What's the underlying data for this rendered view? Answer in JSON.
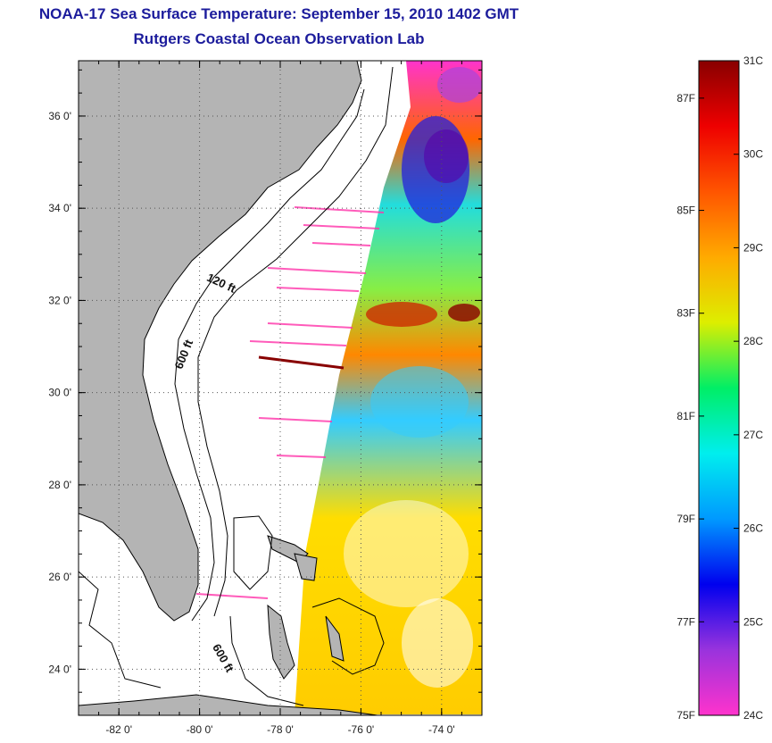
{
  "title_line1": "NOAA-17 Sea Surface Temperature:  September 15, 2010 1402 GMT",
  "title_line2": "Rutgers Coastal Ocean Observation Lab",
  "map": {
    "lon_range": [
      -83,
      -73
    ],
    "lat_range": [
      23,
      37.2
    ],
    "lat_ticks": [
      {
        "value": 24,
        "label": "24 0'"
      },
      {
        "value": 26,
        "label": "26 0'"
      },
      {
        "value": 28,
        "label": "28 0'"
      },
      {
        "value": 30,
        "label": "30 0'"
      },
      {
        "value": 32,
        "label": "32 0'"
      },
      {
        "value": 34,
        "label": "34 0'"
      },
      {
        "value": 36,
        "label": "36 0'"
      }
    ],
    "lon_ticks": [
      {
        "value": -82,
        "label": "-82 0'"
      },
      {
        "value": -80,
        "label": "-80 0'"
      },
      {
        "value": -78,
        "label": "-78 0'"
      },
      {
        "value": -76,
        "label": "-76 0'"
      },
      {
        "value": -74,
        "label": "-74 0'"
      }
    ],
    "contour_labels": [
      {
        "text": "120 ft",
        "lon": -79.5,
        "lat": 32.3
      },
      {
        "text": "600 ft",
        "lon": -80.3,
        "lat": 30.8
      },
      {
        "text": "600 ft",
        "lon": -79.5,
        "lat": 24.2
      }
    ],
    "colors": {
      "land": "#b4b4b4",
      "ocean_nodata": "#ffffff",
      "coast": "#000000"
    }
  },
  "colorbar": {
    "range_c": [
      24,
      31
    ],
    "celsius_labels": [
      {
        "value": 24,
        "label": "24C"
      },
      {
        "value": 25,
        "label": "25C"
      },
      {
        "value": 26,
        "label": "26C"
      },
      {
        "value": 27,
        "label": "27C"
      },
      {
        "value": 28,
        "label": "28C"
      },
      {
        "value": 29,
        "label": "29C"
      },
      {
        "value": 30,
        "label": "30C"
      },
      {
        "value": 31,
        "label": "31C"
      }
    ],
    "fahrenheit_labels": [
      {
        "value": 24,
        "label": "75F"
      },
      {
        "value": 25,
        "label": "77F"
      },
      {
        "value": 26.1,
        "label": "79F"
      },
      {
        "value": 27.2,
        "label": "81F"
      },
      {
        "value": 28.3,
        "label": "83F"
      },
      {
        "value": 29.4,
        "label": "85F"
      },
      {
        "value": 30.6,
        "label": "87F"
      }
    ],
    "stops": [
      "#ff33cc",
      "#9933dd",
      "#0000ee",
      "#0099ff",
      "#00eeee",
      "#00ee66",
      "#ddee00",
      "#ffaa00",
      "#ff5500",
      "#ee0000",
      "#880000"
    ]
  }
}
